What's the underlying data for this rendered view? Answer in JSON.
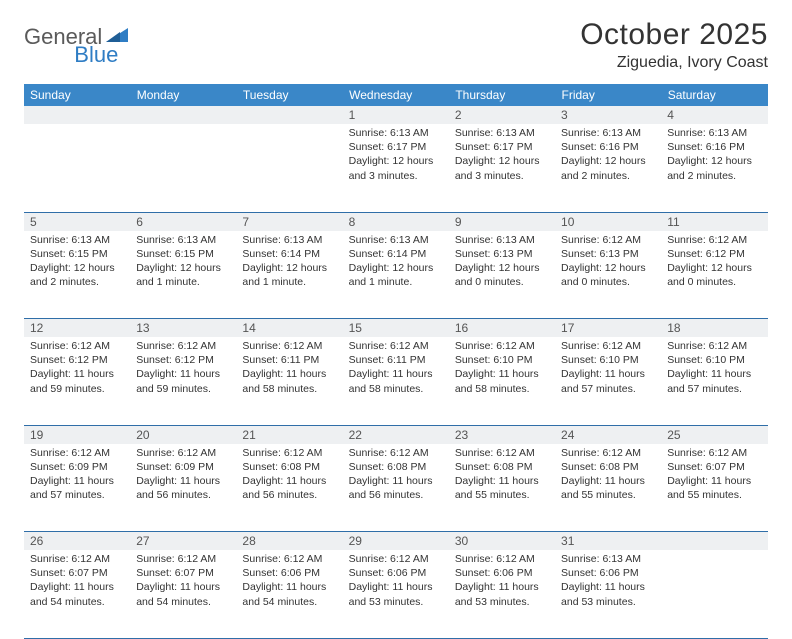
{
  "brand": {
    "part1": "General",
    "part2": "Blue"
  },
  "title": "October 2025",
  "location": "Ziguedia, Ivory Coast",
  "colors": {
    "header_bg": "#3a87c8",
    "header_text": "#ffffff",
    "rule": "#2f6ea8",
    "daynum_bg": "#eef0f2",
    "text": "#333333",
    "logo_gray": "#5a5a5a",
    "logo_blue": "#2f7dc4"
  },
  "day_headers": [
    "Sunday",
    "Monday",
    "Tuesday",
    "Wednesday",
    "Thursday",
    "Friday",
    "Saturday"
  ],
  "weeks": [
    [
      null,
      null,
      null,
      {
        "n": "1",
        "sr": "Sunrise: 6:13 AM",
        "ss": "Sunset: 6:17 PM",
        "dl": "Daylight: 12 hours and 3 minutes."
      },
      {
        "n": "2",
        "sr": "Sunrise: 6:13 AM",
        "ss": "Sunset: 6:17 PM",
        "dl": "Daylight: 12 hours and 3 minutes."
      },
      {
        "n": "3",
        "sr": "Sunrise: 6:13 AM",
        "ss": "Sunset: 6:16 PM",
        "dl": "Daylight: 12 hours and 2 minutes."
      },
      {
        "n": "4",
        "sr": "Sunrise: 6:13 AM",
        "ss": "Sunset: 6:16 PM",
        "dl": "Daylight: 12 hours and 2 minutes."
      }
    ],
    [
      {
        "n": "5",
        "sr": "Sunrise: 6:13 AM",
        "ss": "Sunset: 6:15 PM",
        "dl": "Daylight: 12 hours and 2 minutes."
      },
      {
        "n": "6",
        "sr": "Sunrise: 6:13 AM",
        "ss": "Sunset: 6:15 PM",
        "dl": "Daylight: 12 hours and 1 minute."
      },
      {
        "n": "7",
        "sr": "Sunrise: 6:13 AM",
        "ss": "Sunset: 6:14 PM",
        "dl": "Daylight: 12 hours and 1 minute."
      },
      {
        "n": "8",
        "sr": "Sunrise: 6:13 AM",
        "ss": "Sunset: 6:14 PM",
        "dl": "Daylight: 12 hours and 1 minute."
      },
      {
        "n": "9",
        "sr": "Sunrise: 6:13 AM",
        "ss": "Sunset: 6:13 PM",
        "dl": "Daylight: 12 hours and 0 minutes."
      },
      {
        "n": "10",
        "sr": "Sunrise: 6:12 AM",
        "ss": "Sunset: 6:13 PM",
        "dl": "Daylight: 12 hours and 0 minutes."
      },
      {
        "n": "11",
        "sr": "Sunrise: 6:12 AM",
        "ss": "Sunset: 6:12 PM",
        "dl": "Daylight: 12 hours and 0 minutes."
      }
    ],
    [
      {
        "n": "12",
        "sr": "Sunrise: 6:12 AM",
        "ss": "Sunset: 6:12 PM",
        "dl": "Daylight: 11 hours and 59 minutes."
      },
      {
        "n": "13",
        "sr": "Sunrise: 6:12 AM",
        "ss": "Sunset: 6:12 PM",
        "dl": "Daylight: 11 hours and 59 minutes."
      },
      {
        "n": "14",
        "sr": "Sunrise: 6:12 AM",
        "ss": "Sunset: 6:11 PM",
        "dl": "Daylight: 11 hours and 58 minutes."
      },
      {
        "n": "15",
        "sr": "Sunrise: 6:12 AM",
        "ss": "Sunset: 6:11 PM",
        "dl": "Daylight: 11 hours and 58 minutes."
      },
      {
        "n": "16",
        "sr": "Sunrise: 6:12 AM",
        "ss": "Sunset: 6:10 PM",
        "dl": "Daylight: 11 hours and 58 minutes."
      },
      {
        "n": "17",
        "sr": "Sunrise: 6:12 AM",
        "ss": "Sunset: 6:10 PM",
        "dl": "Daylight: 11 hours and 57 minutes."
      },
      {
        "n": "18",
        "sr": "Sunrise: 6:12 AM",
        "ss": "Sunset: 6:10 PM",
        "dl": "Daylight: 11 hours and 57 minutes."
      }
    ],
    [
      {
        "n": "19",
        "sr": "Sunrise: 6:12 AM",
        "ss": "Sunset: 6:09 PM",
        "dl": "Daylight: 11 hours and 57 minutes."
      },
      {
        "n": "20",
        "sr": "Sunrise: 6:12 AM",
        "ss": "Sunset: 6:09 PM",
        "dl": "Daylight: 11 hours and 56 minutes."
      },
      {
        "n": "21",
        "sr": "Sunrise: 6:12 AM",
        "ss": "Sunset: 6:08 PM",
        "dl": "Daylight: 11 hours and 56 minutes."
      },
      {
        "n": "22",
        "sr": "Sunrise: 6:12 AM",
        "ss": "Sunset: 6:08 PM",
        "dl": "Daylight: 11 hours and 56 minutes."
      },
      {
        "n": "23",
        "sr": "Sunrise: 6:12 AM",
        "ss": "Sunset: 6:08 PM",
        "dl": "Daylight: 11 hours and 55 minutes."
      },
      {
        "n": "24",
        "sr": "Sunrise: 6:12 AM",
        "ss": "Sunset: 6:08 PM",
        "dl": "Daylight: 11 hours and 55 minutes."
      },
      {
        "n": "25",
        "sr": "Sunrise: 6:12 AM",
        "ss": "Sunset: 6:07 PM",
        "dl": "Daylight: 11 hours and 55 minutes."
      }
    ],
    [
      {
        "n": "26",
        "sr": "Sunrise: 6:12 AM",
        "ss": "Sunset: 6:07 PM",
        "dl": "Daylight: 11 hours and 54 minutes."
      },
      {
        "n": "27",
        "sr": "Sunrise: 6:12 AM",
        "ss": "Sunset: 6:07 PM",
        "dl": "Daylight: 11 hours and 54 minutes."
      },
      {
        "n": "28",
        "sr": "Sunrise: 6:12 AM",
        "ss": "Sunset: 6:06 PM",
        "dl": "Daylight: 11 hours and 54 minutes."
      },
      {
        "n": "29",
        "sr": "Sunrise: 6:12 AM",
        "ss": "Sunset: 6:06 PM",
        "dl": "Daylight: 11 hours and 53 minutes."
      },
      {
        "n": "30",
        "sr": "Sunrise: 6:12 AM",
        "ss": "Sunset: 6:06 PM",
        "dl": "Daylight: 11 hours and 53 minutes."
      },
      {
        "n": "31",
        "sr": "Sunrise: 6:13 AM",
        "ss": "Sunset: 6:06 PM",
        "dl": "Daylight: 11 hours and 53 minutes."
      },
      null
    ]
  ]
}
